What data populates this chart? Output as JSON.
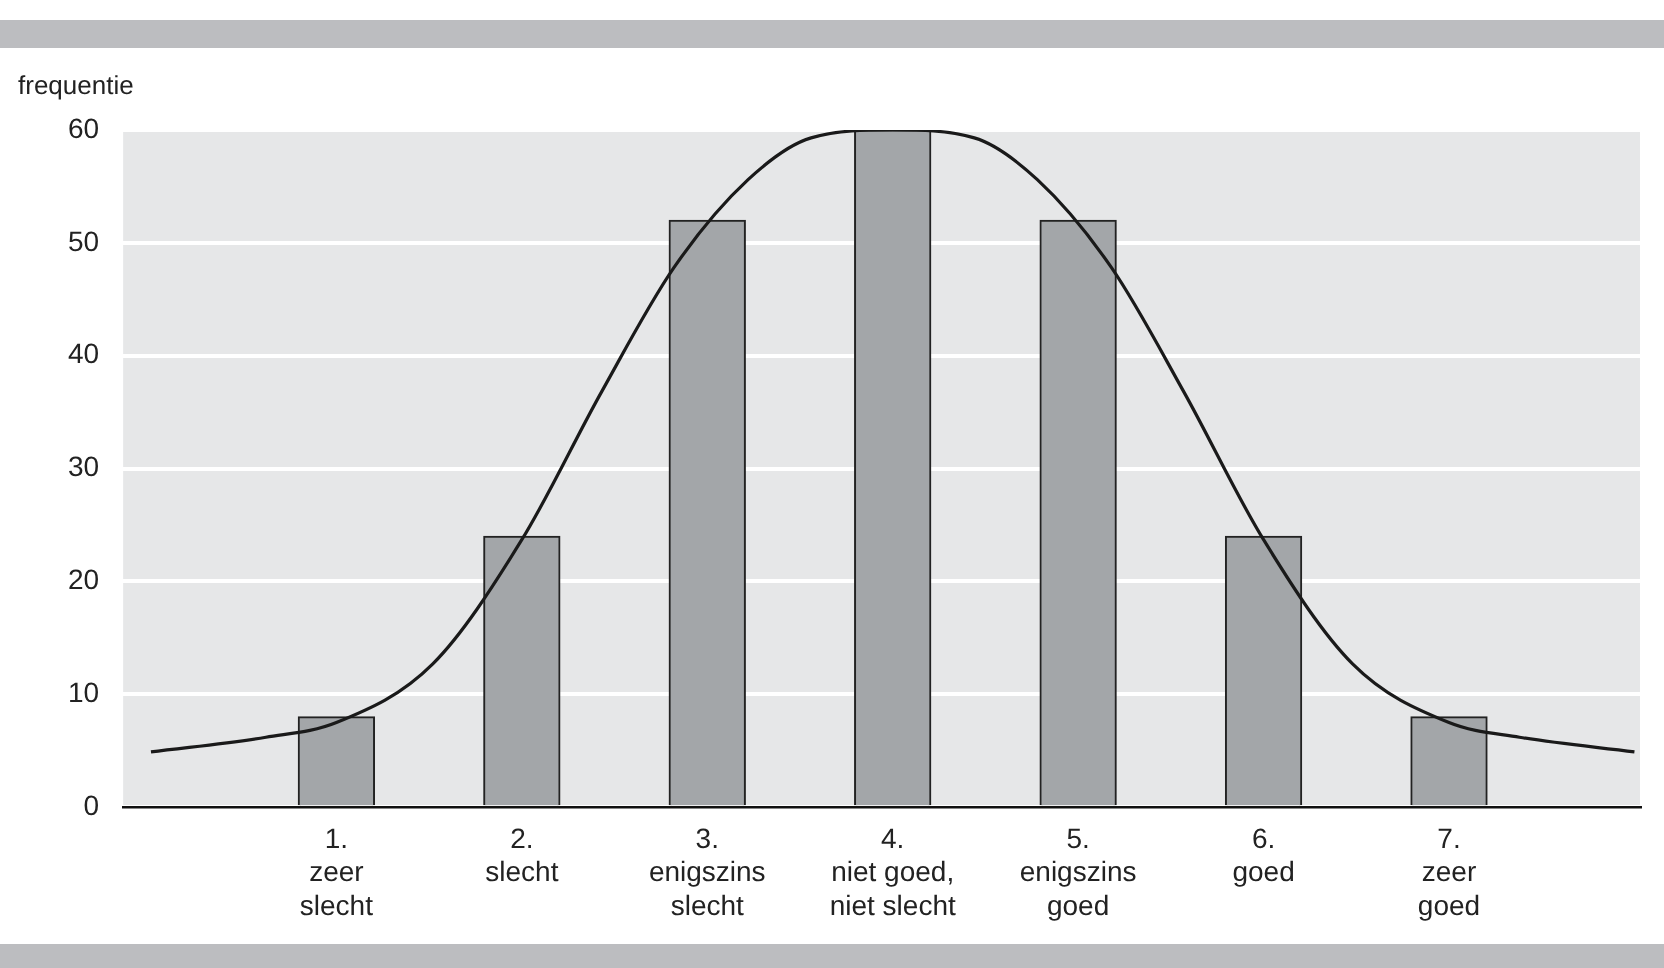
{
  "chart_data": {
    "type": "bar",
    "ylabel": "frequentie",
    "x": [
      1,
      2,
      3,
      4,
      5,
      6,
      7
    ],
    "xlim": [
      -0.15,
      8.03
    ],
    "xticks": [
      {
        "value": 1,
        "label": "1.\nzeer\nslecht"
      },
      {
        "value": 2,
        "label": "2.\nslecht"
      },
      {
        "value": 3,
        "label": "3.\nenigszins\nslecht"
      },
      {
        "value": 4,
        "label": "4.\nniet goed,\nniet slecht"
      },
      {
        "value": 5,
        "label": "5.\nenigszins\ngoed"
      },
      {
        "value": 6,
        "label": "6.\ngoed"
      },
      {
        "value": 7,
        "label": "7.\nzeer\ngoed"
      }
    ],
    "series": [
      {
        "color": "#a3a6a9",
        "values": [
          8,
          24,
          52,
          60,
          52,
          24,
          8
        ]
      },
      {
        "type": "line",
        "color": "#1a1a1a",
        "x": [
          0,
          0.62,
          1,
          1.52,
          2,
          2.43,
          2.82,
          3.22,
          3.56,
          4,
          4.44,
          4.78,
          5.18,
          5.57,
          6,
          6.48,
          7,
          7.38,
          8
        ],
        "values": [
          4.9,
          6.2,
          7.5,
          12.7,
          23.7,
          36.8,
          47.8,
          55.6,
          59.3,
          60,
          59.3,
          55.6,
          47.8,
          36.8,
          23.7,
          12.7,
          7.5,
          6.2,
          4.9
        ]
      }
    ],
    "ylim": [
      0,
      60
    ],
    "yticks": [
      0,
      10,
      20,
      30,
      40,
      50,
      60
    ],
    "grid": "y",
    "legend": false,
    "marker": "none",
    "line_style": "solid"
  }
}
